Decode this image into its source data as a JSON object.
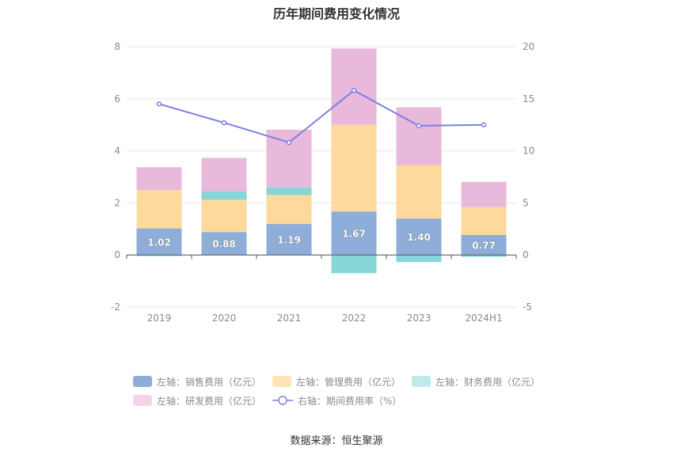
{
  "chart_data": {
    "type": "bar",
    "title": "历年期间费用变化情况",
    "categories": [
      "2019",
      "2020",
      "2021",
      "2022",
      "2023",
      "2024H1"
    ],
    "left_axis": {
      "ylim": [
        -2,
        8
      ],
      "ticks": [
        "-2",
        "0",
        "2",
        "4",
        "6",
        "8"
      ]
    },
    "right_axis": {
      "ylim": [
        -5,
        20
      ],
      "ticks": [
        "-5",
        "0",
        "5",
        "10",
        "15",
        "20"
      ]
    },
    "series": [
      {
        "name": "左轴：销售费用（亿元）",
        "axis": "left",
        "type": "bar",
        "color": "#8eadd8",
        "values": [
          1.02,
          0.88,
          1.19,
          1.67,
          1.4,
          0.77
        ],
        "labels": [
          "1.02",
          "0.88",
          "1.19",
          "1.67",
          "1.40",
          "0.77"
        ]
      },
      {
        "name": "左轴：管理费用（亿元）",
        "axis": "left",
        "type": "bar",
        "color": "#fdd99b",
        "values": [
          1.47,
          1.24,
          1.11,
          3.33,
          2.05,
          1.07
        ]
      },
      {
        "name": "左轴：财务费用（亿元）",
        "axis": "left",
        "type": "bar",
        "color": "#86d6d8",
        "values": [
          -0.04,
          0.33,
          0.3,
          -0.7,
          -0.27,
          -0.07
        ]
      },
      {
        "name": "左轴：研发费用（亿元）",
        "axis": "left",
        "type": "bar",
        "color": "#e8b9da",
        "values": [
          0.88,
          1.28,
          2.21,
          2.93,
          2.22,
          0.97
        ]
      },
      {
        "name": "右轴：期间费用率（%）",
        "axis": "right",
        "type": "line",
        "color": "#7b7fe8",
        "values": [
          14.5,
          12.7,
          10.8,
          15.8,
          12.4,
          12.5
        ]
      }
    ],
    "grid": true,
    "legend_position": "bottom"
  },
  "legend_colors": {
    "sales": "#8eadd8",
    "mgmt": "#fde3b5",
    "fin": "#bfe9ea",
    "rd": "#f3d4e9",
    "line": "#7b7fe8"
  },
  "source": "数据来源：恒生聚源"
}
